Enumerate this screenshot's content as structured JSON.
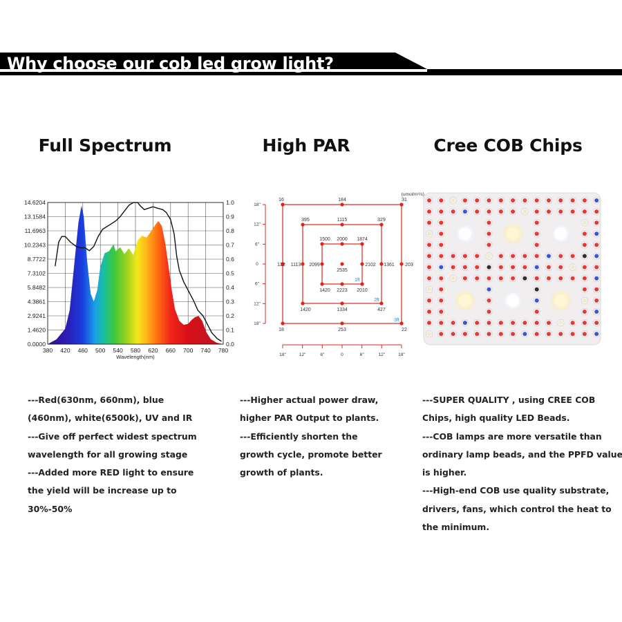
{
  "banner": {
    "title": "Why choose our cob led grow light?"
  },
  "columns": [
    {
      "title": "Full Spectrum",
      "lines": [
        "---Red(630nm, 660nm), blue",
        "(460nm), white(6500k), UV and IR",
        "---Give off perfect  widest spectrum",
        "wavelength for all growing stage",
        "---Added more RED light to ensure",
        "the yield will be increase up to",
        "30%-50%"
      ]
    },
    {
      "title": "High PAR",
      "lines": [
        "---Higher actual power draw,",
        "higher PAR Output to plants.",
        "---Efficiently shorten the",
        "growth cycle, promote better",
        "growth of plants."
      ]
    },
    {
      "title": "Cree COB Chips",
      "lines": [
        "---SUPER QUALITY , using CREE COB",
        "Chips, high quality LED Beads.",
        "---COB lamps are more versatile than",
        "ordinary lamp beads, and the PPFD value",
        "is higher.",
        "---High-end COB use quality substrate,",
        "drivers, fans, which control the heat to",
        "the minimum."
      ]
    }
  ],
  "spectrum": {
    "y_left_ticks": [
      "14.6204",
      "13.1584",
      "11.6963",
      "10.2343",
      "8.7722",
      "7.3102",
      "5.8482",
      "4.3861",
      "2.9241",
      "1.4620",
      "0.0000"
    ],
    "y_right_ticks": [
      "1.0",
      "0.9",
      "0.8",
      "0.7",
      "0.6",
      "0.5",
      "0.4",
      "0.3",
      "0.2",
      "0.1",
      "0.0"
    ],
    "x_ticks": [
      "380",
      "420",
      "460",
      "500",
      "540",
      "580",
      "620",
      "660",
      "700",
      "740",
      "780"
    ],
    "x_label": "Wavelength(nm)"
  },
  "par_map": {
    "unit": "(umol/m²/s)",
    "left_ticks": [
      "18\"",
      "12\"",
      "6\"",
      "0",
      "6\"",
      "12\"",
      "18\""
    ],
    "bottom_ticks": [
      "18\"",
      "12\"",
      "6\"",
      "0",
      "6\"",
      "12\"",
      "18\""
    ],
    "outer": [
      "16",
      "184",
      "31",
      "122",
      "203",
      "18",
      "253",
      "22"
    ],
    "middle": [
      "395",
      "1115",
      "329",
      "1113",
      "1361",
      "1420",
      "1334",
      "427"
    ],
    "inner": [
      "1500",
      "2000",
      "1874",
      "2099",
      "2102",
      "1420",
      "2223",
      "2010"
    ],
    "center": "2535",
    "ring_labels": [
      "1ft",
      "2ft",
      "3ft"
    ]
  },
  "colors": {
    "banner": "#000000",
    "par_red": "#e0241c",
    "ft_blue": "#1e8ad6",
    "board": "#f1eef0"
  }
}
